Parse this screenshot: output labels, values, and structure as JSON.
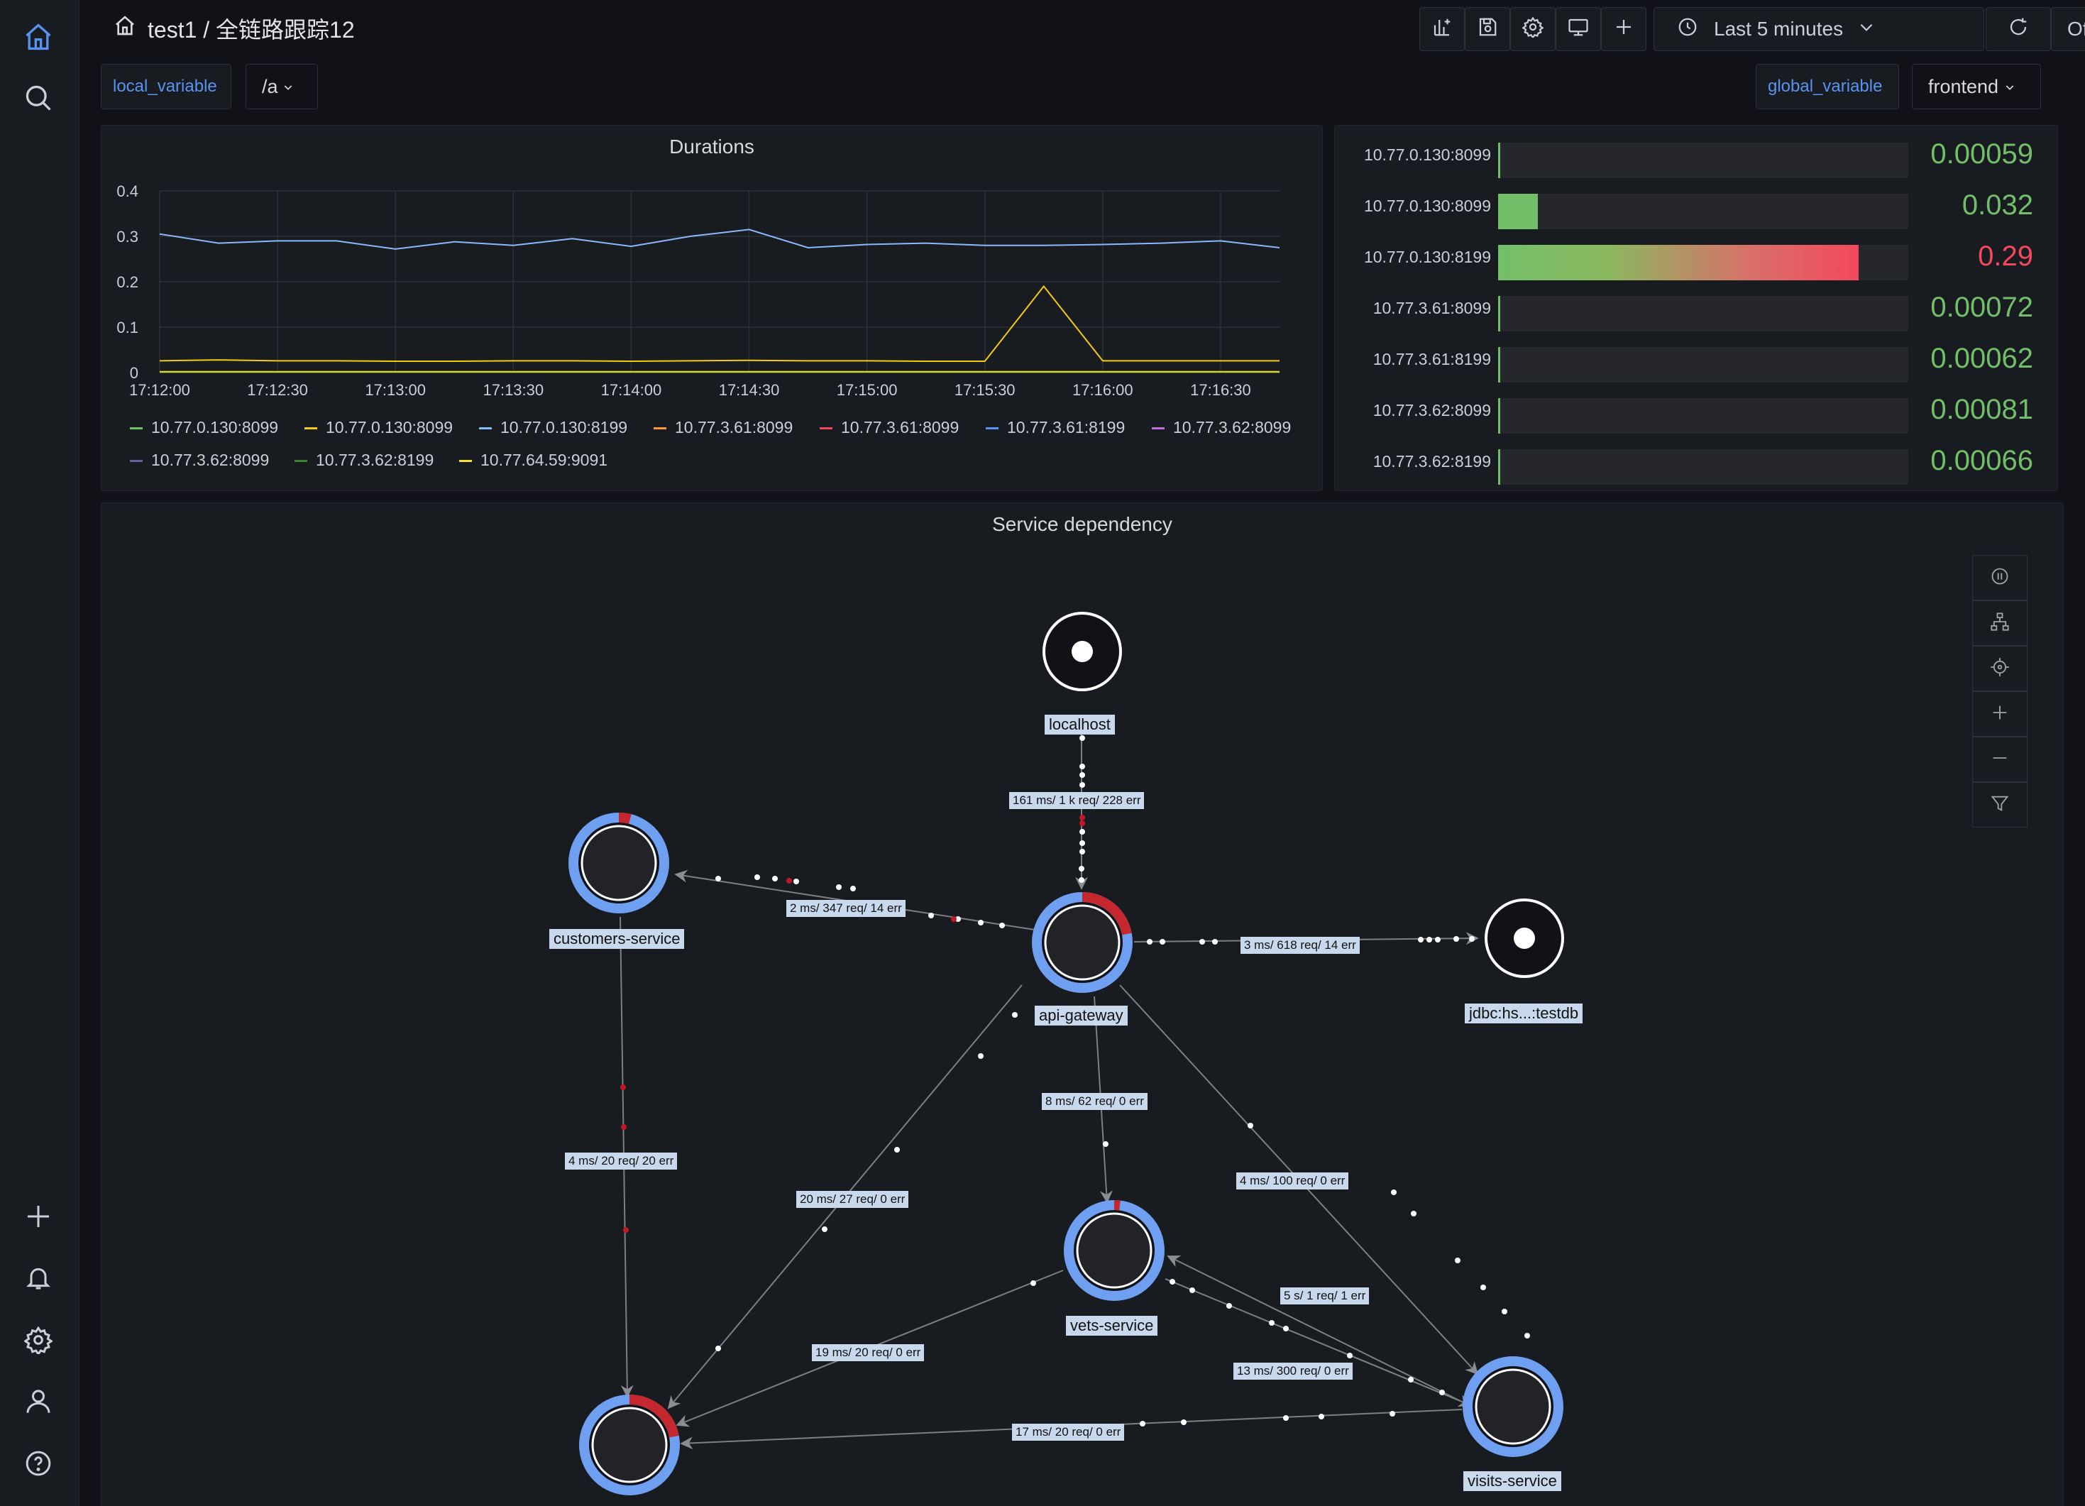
{
  "header": {
    "title": "test1 / 全链路跟踪12",
    "time_range": "Last 5 minutes",
    "refresh": "Off"
  },
  "variables": {
    "local_label": "local_variable",
    "local_value": "/a",
    "global_label": "global_variable",
    "global_value": "frontend"
  },
  "durations_panel": {
    "title": "Durations"
  },
  "chart_data": {
    "type": "line",
    "title": "Durations",
    "x": [
      "17:12:00",
      "17:12:15",
      "17:12:30",
      "17:12:45",
      "17:13:00",
      "17:13:15",
      "17:13:30",
      "17:13:45",
      "17:14:00",
      "17:14:15",
      "17:14:30",
      "17:14:45",
      "17:15:00",
      "17:15:15",
      "17:15:30",
      "17:15:45",
      "17:16:00",
      "17:16:15",
      "17:16:30",
      "17:16:45"
    ],
    "xticks": [
      "17:12:00",
      "17:12:30",
      "17:13:00",
      "17:13:30",
      "17:14:00",
      "17:14:30",
      "17:15:00",
      "17:15:30",
      "17:16:00",
      "17:16:30"
    ],
    "yticks": [
      "0",
      "0.1",
      "0.2",
      "0.3",
      "0.4"
    ],
    "ylim": [
      0,
      0.4
    ],
    "grid": true,
    "legend_position": "bottom",
    "series": [
      {
        "name": "10.77.0.130:8099",
        "color": "#73bf69",
        "values": [
          0.001,
          0.001,
          0.001,
          0.001,
          0.001,
          0.001,
          0.001,
          0.001,
          0.001,
          0.001,
          0.001,
          0.001,
          0.001,
          0.001,
          0.001,
          0.001,
          0.001,
          0.001,
          0.001,
          0.001
        ]
      },
      {
        "name": "10.77.0.130:8099",
        "color": "#f2cc0c",
        "values": [
          0.026,
          0.028,
          0.026,
          0.026,
          0.025,
          0.025,
          0.026,
          0.026,
          0.025,
          0.026,
          0.027,
          0.026,
          0.026,
          0.025,
          0.025,
          0.19,
          0.026,
          0.026,
          0.026,
          0.026
        ]
      },
      {
        "name": "10.77.0.130:8199",
        "color": "#8ab8ff",
        "values": [
          0.305,
          0.285,
          0.29,
          0.29,
          0.272,
          0.288,
          0.28,
          0.295,
          0.278,
          0.3,
          0.315,
          0.275,
          0.282,
          0.285,
          0.28,
          0.28,
          0.282,
          0.285,
          0.29,
          0.275
        ]
      },
      {
        "name": "10.77.3.61:8099",
        "color": "#ff9830",
        "values": [
          0.001,
          0.001,
          0.001,
          0.001,
          0.001,
          0.001,
          0.001,
          0.001,
          0.001,
          0.001,
          0.001,
          0.001,
          0.001,
          0.001,
          0.001,
          0.001,
          0.001,
          0.001,
          0.001,
          0.001
        ]
      },
      {
        "name": "10.77.3.61:8099",
        "color": "#f2495c",
        "values": [
          0.001,
          0.001,
          0.001,
          0.001,
          0.001,
          0.001,
          0.001,
          0.001,
          0.001,
          0.001,
          0.001,
          0.001,
          0.001,
          0.001,
          0.001,
          0.001,
          0.001,
          0.001,
          0.001,
          0.001
        ]
      },
      {
        "name": "10.77.3.61:8199",
        "color": "#5794f2",
        "values": [
          0.001,
          0.001,
          0.001,
          0.001,
          0.001,
          0.001,
          0.001,
          0.001,
          0.001,
          0.001,
          0.001,
          0.001,
          0.001,
          0.001,
          0.001,
          0.001,
          0.001,
          0.001,
          0.001,
          0.001
        ]
      },
      {
        "name": "10.77.3.62:8099",
        "color": "#b877d9",
        "values": [
          0.001,
          0.001,
          0.001,
          0.001,
          0.001,
          0.001,
          0.001,
          0.001,
          0.001,
          0.001,
          0.001,
          0.001,
          0.001,
          0.001,
          0.001,
          0.001,
          0.001,
          0.001,
          0.001,
          0.001
        ]
      },
      {
        "name": "10.77.3.62:8099",
        "color": "#705da0",
        "values": [
          0.001,
          0.001,
          0.001,
          0.001,
          0.001,
          0.001,
          0.001,
          0.001,
          0.001,
          0.001,
          0.001,
          0.001,
          0.001,
          0.001,
          0.001,
          0.001,
          0.001,
          0.001,
          0.001,
          0.001
        ]
      },
      {
        "name": "10.77.3.62:8199",
        "color": "#37872d",
        "values": [
          0.001,
          0.001,
          0.001,
          0.001,
          0.001,
          0.001,
          0.001,
          0.001,
          0.001,
          0.001,
          0.001,
          0.001,
          0.001,
          0.001,
          0.001,
          0.001,
          0.001,
          0.001,
          0.001,
          0.001
        ]
      },
      {
        "name": "10.77.64.59:9091",
        "color": "#fade2a",
        "values": [
          0.002,
          0.002,
          0.002,
          0.002,
          0.002,
          0.002,
          0.002,
          0.002,
          0.002,
          0.002,
          0.002,
          0.002,
          0.002,
          0.002,
          0.002,
          0.002,
          0.002,
          0.002,
          0.002,
          0.002
        ]
      }
    ]
  },
  "bargauge": {
    "max": 0.33,
    "rows": [
      {
        "label": "10.77.0.130:8099",
        "value": 0.00059,
        "display": "0.00059",
        "color": "#73bf69"
      },
      {
        "label": "10.77.0.130:8099",
        "value": 0.032,
        "display": "0.032",
        "color": "#73bf69"
      },
      {
        "label": "10.77.0.130:8199",
        "value": 0.29,
        "display": "0.29",
        "color": "#f2495c"
      },
      {
        "label": "10.77.3.61:8099",
        "value": 0.00072,
        "display": "0.00072",
        "color": "#73bf69"
      },
      {
        "label": "10.77.3.61:8199",
        "value": 0.00062,
        "display": "0.00062",
        "color": "#73bf69"
      },
      {
        "label": "10.77.3.62:8099",
        "value": 0.00081,
        "display": "0.00081",
        "color": "#73bf69"
      },
      {
        "label": "10.77.3.62:8199",
        "value": 0.00066,
        "display": "0.00066",
        "color": "#73bf69"
      }
    ]
  },
  "service_graph": {
    "title": "Service dependency",
    "nodes": [
      {
        "id": "localhost",
        "label": "localhost",
        "error_fraction": 0
      },
      {
        "id": "customers",
        "label": "customers-service",
        "error_fraction": 0.04
      },
      {
        "id": "gateway",
        "label": "api-gateway",
        "error_fraction": 0.22
      },
      {
        "id": "jdbc",
        "label": "jdbc:hs...:testdb",
        "error_fraction": 0
      },
      {
        "id": "vets",
        "label": "vets-service",
        "error_fraction": 0.02
      },
      {
        "id": "visits",
        "label": "visits-service",
        "error_fraction": 0
      },
      {
        "id": "bottom",
        "label": "",
        "error_fraction": 0.22
      }
    ],
    "edges": [
      {
        "label": "161 ms/ 1 k req/ 228 err"
      },
      {
        "label": "2 ms/ 347 req/ 14 err"
      },
      {
        "label": "3 ms/ 618 req/ 14 err"
      },
      {
        "label": "8 ms/ 62 req/ 0 err"
      },
      {
        "label": "4 ms/ 100 req/ 0 err"
      },
      {
        "label": "4 ms/ 20 req/ 20 err"
      },
      {
        "label": "20 ms/ 27 req/ 0 err"
      },
      {
        "label": "5 s/ 1 req/ 1 err"
      },
      {
        "label": "13 ms/ 300 req/ 0 err"
      },
      {
        "label": "19 ms/ 20 req/ 0 err"
      },
      {
        "label": "17 ms/ 20 req/ 0 err"
      }
    ]
  },
  "icons": {
    "sidebar": [
      "home-icon",
      "search-icon",
      "plus-icon",
      "bell-icon",
      "gear-icon",
      "user-icon",
      "help-icon"
    ],
    "toolbar": [
      "add-panel-icon",
      "save-icon",
      "gear-icon",
      "monitor-icon",
      "plus-icon",
      "clock-icon",
      "refresh-icon"
    ],
    "graph_tools": [
      "pause-icon",
      "layout-icon",
      "target-icon",
      "zoom-in-icon",
      "zoom-out-icon",
      "filter-icon"
    ]
  }
}
